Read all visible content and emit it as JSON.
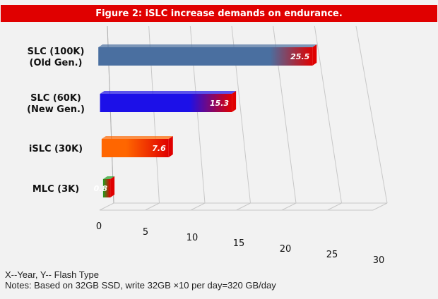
{
  "chart_data": {
    "type": "bar",
    "orientation": "horizontal",
    "title": "Figure 2: iSLC increase demands on endurance.",
    "categories": [
      [
        "SLC (100K)",
        "(Old Gen.)"
      ],
      [
        "SLC (60K)",
        "(New Gen.)"
      ],
      [
        "iSLC (30K)"
      ],
      [
        "MLC (3K)"
      ]
    ],
    "values": [
      25.5,
      15.3,
      7.6,
      0.8
    ],
    "value_labels": [
      "25.5",
      "15.3",
      "7.6",
      "0.8"
    ],
    "xticks": [
      "0",
      "5",
      "10",
      "15",
      "20",
      "25",
      "30"
    ],
    "xlim": [
      0,
      30
    ],
    "grid": true,
    "colors": [
      "#4a6fa0",
      "#1c10e8",
      "#ff6600",
      "#1fa01f"
    ],
    "end_cap_color": "#e00000"
  },
  "notes": {
    "line1": "X--Year, Y-- Flash Type",
    "line2": "Notes: Based on 32GB SSD, write 32GB ×10 per day=320 GB/day"
  }
}
